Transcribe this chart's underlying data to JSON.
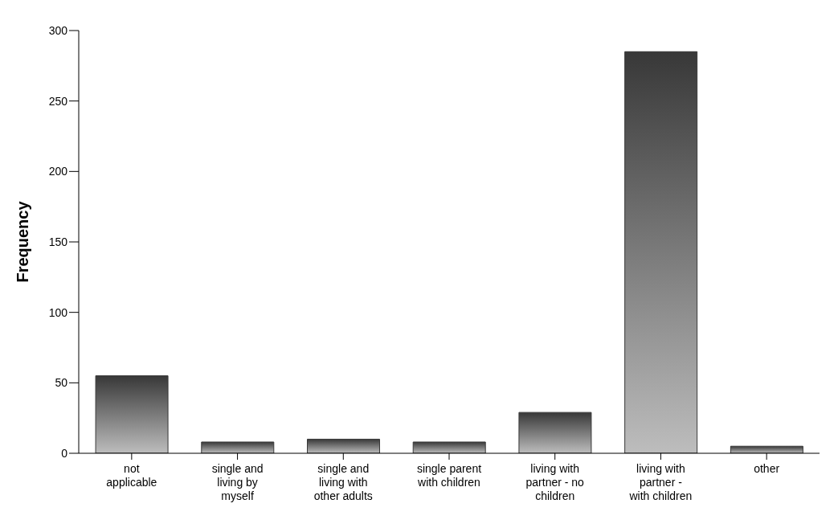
{
  "chart_data": {
    "type": "bar",
    "ylabel": "Frequency",
    "categories": [
      "not applicable",
      "single and living by myself",
      "single and living with other adults",
      "single parent with children",
      "living with partner - no children",
      "living with partner - with children",
      "other"
    ],
    "values": [
      55,
      8,
      10,
      8,
      29,
      285,
      5
    ],
    "color": "#383838",
    "ylim": [
      0,
      300
    ],
    "yticks": [
      0,
      50,
      100,
      150,
      200,
      250,
      300
    ],
    "grid": false
  }
}
